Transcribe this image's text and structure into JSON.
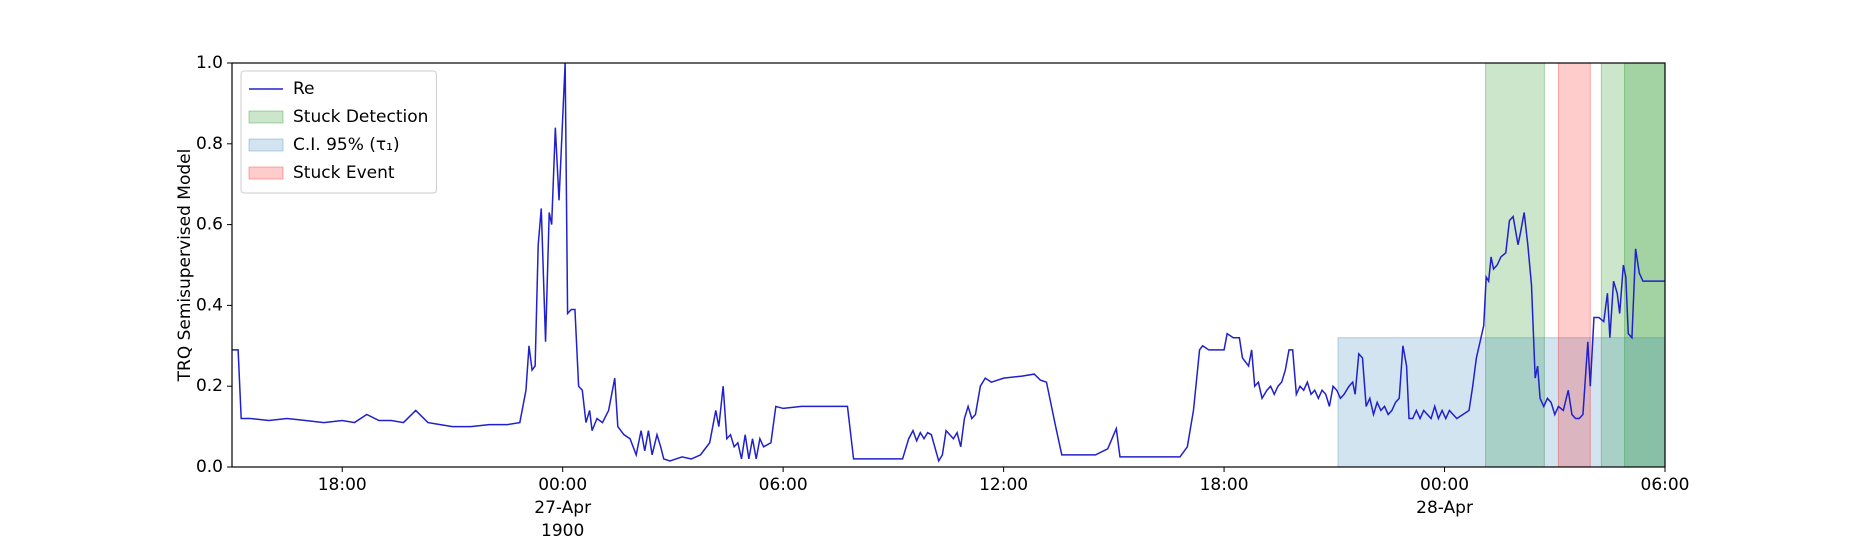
{
  "chart_data": {
    "type": "line",
    "ylabel": "TRQ Semisupervised Model",
    "ylim": [
      0,
      1
    ],
    "yticks": [
      {
        "value": 0,
        "label": "0.0"
      },
      0.2,
      0.4,
      0.6,
      0.8,
      {
        "value": 1,
        "label": "1.0"
      }
    ],
    "xlim": [
      "1900-04-26T15:00",
      "1900-04-28T06:00"
    ],
    "xticks": [
      {
        "value": "1900-04-26T18:00",
        "label": "18:00"
      },
      {
        "value": "1900-04-27T00:00",
        "label": "00:00\n27-Apr\n1900"
      },
      {
        "value": "1900-04-27T06:00",
        "label": "06:00"
      },
      {
        "value": "1900-04-27T12:00",
        "label": "12:00"
      },
      {
        "value": "1900-04-27T18:00",
        "label": "18:00"
      },
      {
        "value": "1900-04-28T00:00",
        "label": "00:00\n28-Apr"
      },
      {
        "value": "1900-04-28T06:00",
        "label": "06:00"
      }
    ],
    "grid": false,
    "legend": "upper left",
    "x": [
      "1900-04-26T15:00",
      "1900-04-26T15:10",
      "1900-04-26T15:15",
      "1900-04-26T15:30",
      "1900-04-26T16:00",
      "1900-04-26T16:30",
      "1900-04-26T17:00",
      "1900-04-26T17:30",
      "1900-04-26T18:00",
      "1900-04-26T18:20",
      "1900-04-26T18:40",
      "1900-04-26T19:00",
      "1900-04-26T19:20",
      "1900-04-26T19:40",
      "1900-04-26T20:00",
      "1900-04-26T20:20",
      "1900-04-26T20:40",
      "1900-04-26T21:00",
      "1900-04-26T21:30",
      "1900-04-26T22:00",
      "1900-04-26T22:30",
      "1900-04-26T22:50",
      "1900-04-26T23:00",
      "1900-04-26T23:05",
      "1900-04-26T23:10",
      "1900-04-26T23:15",
      "1900-04-26T23:20",
      "1900-04-26T23:25",
      "1900-04-26T23:32",
      "1900-04-26T23:38",
      "1900-04-26T23:42",
      "1900-04-26T23:48",
      "1900-04-26T23:54",
      "1900-04-27T00:04",
      "1900-04-27T00:08",
      "1900-04-27T00:14",
      "1900-04-27T00:20",
      "1900-04-27T00:26",
      "1900-04-27T00:32",
      "1900-04-27T00:38",
      "1900-04-27T00:44",
      "1900-04-27T00:48",
      "1900-04-27T00:56",
      "1900-04-27T01:05",
      "1900-04-27T01:15",
      "1900-04-27T01:25",
      "1900-04-27T01:30",
      "1900-04-27T01:40",
      "1900-04-27T01:50",
      "1900-04-27T02:00",
      "1900-04-27T02:08",
      "1900-04-27T02:14",
      "1900-04-27T02:20",
      "1900-04-27T02:26",
      "1900-04-27T02:34",
      "1900-04-27T02:40",
      "1900-04-27T02:45",
      "1900-04-27T02:55",
      "1900-04-27T03:05",
      "1900-04-27T03:15",
      "1900-04-27T03:30",
      "1900-04-27T03:45",
      "1900-04-27T04:00",
      "1900-04-27T04:10",
      "1900-04-27T04:15",
      "1900-04-27T04:22",
      "1900-04-27T04:28",
      "1900-04-27T04:34",
      "1900-04-27T04:40",
      "1900-04-27T04:46",
      "1900-04-27T04:52",
      "1900-04-27T04:58",
      "1900-04-27T05:04",
      "1900-04-27T05:10",
      "1900-04-27T05:16",
      "1900-04-27T05:22",
      "1900-04-27T05:28",
      "1900-04-27T05:40",
      "1900-04-27T05:48",
      "1900-04-27T06:00",
      "1900-04-27T06:30",
      "1900-04-27T07:00",
      "1900-04-27T07:30",
      "1900-04-27T07:45",
      "1900-04-27T07:55",
      "1900-04-27T08:30",
      "1900-04-27T09:00",
      "1900-04-27T09:15",
      "1900-04-27T09:25",
      "1900-04-27T09:32",
      "1900-04-27T09:38",
      "1900-04-27T09:44",
      "1900-04-27T09:50",
      "1900-04-27T09:56",
      "1900-04-27T10:02",
      "1900-04-27T10:14",
      "1900-04-27T10:20",
      "1900-04-27T10:26",
      "1900-04-27T10:32",
      "1900-04-27T10:38",
      "1900-04-27T10:44",
      "1900-04-27T10:50",
      "1900-04-27T10:56",
      "1900-04-27T11:02",
      "1900-04-27T11:08",
      "1900-04-27T11:14",
      "1900-04-27T11:22",
      "1900-04-27T11:30",
      "1900-04-27T11:40",
      "1900-04-27T12:00",
      "1900-04-27T12:30",
      "1900-04-27T12:50",
      "1900-04-27T13:00",
      "1900-04-27T13:10",
      "1900-04-27T13:25",
      "1900-04-27T13:35",
      "1900-04-27T14:00",
      "1900-04-27T14:30",
      "1900-04-27T14:50",
      "1900-04-27T15:04",
      "1900-04-27T15:10",
      "1900-04-27T15:30",
      "1900-04-27T16:00",
      "1900-04-27T16:30",
      "1900-04-27T16:48",
      "1900-04-27T17:00",
      "1900-04-27T17:10",
      "1900-04-27T17:20",
      "1900-04-27T17:25",
      "1900-04-27T17:35",
      "1900-04-27T18:00",
      "1900-04-27T18:05",
      "1900-04-27T18:15",
      "1900-04-27T18:25",
      "1900-04-27T18:30",
      "1900-04-27T18:40",
      "1900-04-27T18:45",
      "1900-04-27T18:50",
      "1900-04-27T18:56",
      "1900-04-27T19:02",
      "1900-04-27T19:10",
      "1900-04-27T19:16",
      "1900-04-27T19:22",
      "1900-04-27T19:28",
      "1900-04-27T19:34",
      "1900-04-27T19:40",
      "1900-04-27T19:46",
      "1900-04-27T19:52",
      "1900-04-27T19:58",
      "1900-04-27T20:04",
      "1900-04-27T20:10",
      "1900-04-27T20:16",
      "1900-04-27T20:22",
      "1900-04-27T20:28",
      "1900-04-27T20:34",
      "1900-04-27T20:40",
      "1900-04-27T20:46",
      "1900-04-27T20:52",
      "1900-04-27T20:58",
      "1900-04-27T21:04",
      "1900-04-27T21:10",
      "1900-04-27T21:16",
      "1900-04-27T21:24",
      "1900-04-27T21:30",
      "1900-04-27T21:34",
      "1900-04-27T21:40",
      "1900-04-27T21:46",
      "1900-04-27T21:52",
      "1900-04-27T21:58",
      "1900-04-27T22:04",
      "1900-04-27T22:10",
      "1900-04-27T22:16",
      "1900-04-27T22:22",
      "1900-04-27T22:28",
      "1900-04-27T22:34",
      "1900-04-27T22:40",
      "1900-04-27T22:46",
      "1900-04-27T22:52",
      "1900-04-27T22:58",
      "1900-04-27T23:02",
      "1900-04-27T23:08",
      "1900-04-27T23:14",
      "1900-04-27T23:20",
      "1900-04-27T23:26",
      "1900-04-27T23:32",
      "1900-04-27T23:38",
      "1900-04-27T23:44",
      "1900-04-27T23:50",
      "1900-04-27T23:56",
      "1900-04-28T00:02",
      "1900-04-28T00:08",
      "1900-04-28T00:14",
      "1900-04-28T00:20",
      "1900-04-28T00:30",
      "1900-04-28T00:40",
      "1900-04-28T00:46",
      "1900-04-28T00:52",
      "1900-04-28T00:58",
      "1900-04-28T01:04",
      "1900-04-28T01:08",
      "1900-04-28T01:12",
      "1900-04-28T01:16",
      "1900-04-28T01:20",
      "1900-04-28T01:26",
      "1900-04-28T01:32",
      "1900-04-28T01:40",
      "1900-04-28T01:46",
      "1900-04-28T01:52",
      "1900-04-28T02:00",
      "1900-04-28T02:04",
      "1900-04-28T02:10",
      "1900-04-28T02:16",
      "1900-04-28T02:22",
      "1900-04-28T02:28",
      "1900-04-28T02:32",
      "1900-04-28T02:36",
      "1900-04-28T02:42",
      "1900-04-28T02:48",
      "1900-04-28T02:54",
      "1900-04-28T03:00",
      "1900-04-28T03:06",
      "1900-04-28T03:14",
      "1900-04-28T03:22",
      "1900-04-28T03:28",
      "1900-04-28T03:34",
      "1900-04-28T03:40",
      "1900-04-28T03:46",
      "1900-04-28T03:54",
      "1900-04-28T03:58",
      "1900-04-28T04:04",
      "1900-04-28T04:12",
      "1900-04-28T04:20",
      "1900-04-28T04:26",
      "1900-04-28T04:30",
      "1900-04-28T04:36",
      "1900-04-28T04:42",
      "1900-04-28T04:46",
      "1900-04-28T04:52",
      "1900-04-28T04:56",
      "1900-04-28T05:00",
      "1900-04-28T05:06",
      "1900-04-28T05:12",
      "1900-04-28T05:18",
      "1900-04-28T05:24",
      "1900-04-28T05:35",
      "1900-04-28T06:00"
    ],
    "series": [
      {
        "name": "Re",
        "color": "#2020cc",
        "values": [
          0.29,
          0.29,
          0.12,
          0.12,
          0.115,
          0.12,
          0.115,
          0.11,
          0.115,
          0.11,
          0.13,
          0.115,
          0.115,
          0.11,
          0.14,
          0.11,
          0.105,
          0.1,
          0.1,
          0.105,
          0.105,
          0.11,
          0.19,
          0.3,
          0.24,
          0.25,
          0.55,
          0.64,
          0.31,
          0.63,
          0.6,
          0.84,
          0.66,
          1.0,
          0.38,
          0.39,
          0.39,
          0.2,
          0.19,
          0.11,
          0.14,
          0.09,
          0.12,
          0.11,
          0.14,
          0.22,
          0.1,
          0.08,
          0.07,
          0.03,
          0.09,
          0.04,
          0.09,
          0.03,
          0.08,
          0.05,
          0.02,
          0.015,
          0.02,
          0.025,
          0.02,
          0.03,
          0.06,
          0.14,
          0.1,
          0.2,
          0.07,
          0.08,
          0.05,
          0.06,
          0.02,
          0.08,
          0.02,
          0.07,
          0.02,
          0.07,
          0.05,
          0.06,
          0.15,
          0.145,
          0.15,
          0.15,
          0.15,
          0.15,
          0.02,
          0.02,
          0.02,
          0.02,
          0.07,
          0.09,
          0.065,
          0.085,
          0.07,
          0.085,
          0.08,
          0.015,
          0.03,
          0.09,
          0.08,
          0.07,
          0.085,
          0.05,
          0.12,
          0.15,
          0.12,
          0.13,
          0.2,
          0.22,
          0.21,
          0.22,
          0.225,
          0.23,
          0.215,
          0.21,
          0.1,
          0.03,
          0.03,
          0.03,
          0.045,
          0.095,
          0.025,
          0.025,
          0.025,
          0.025,
          0.025,
          0.05,
          0.14,
          0.29,
          0.3,
          0.29,
          0.29,
          0.33,
          0.32,
          0.32,
          0.27,
          0.25,
          0.29,
          0.2,
          0.21,
          0.17,
          0.19,
          0.2,
          0.18,
          0.2,
          0.21,
          0.24,
          0.29,
          0.29,
          0.18,
          0.2,
          0.19,
          0.21,
          0.18,
          0.19,
          0.17,
          0.19,
          0.18,
          0.15,
          0.2,
          0.19,
          0.17,
          0.18,
          0.2,
          0.21,
          0.18,
          0.28,
          0.27,
          0.15,
          0.17,
          0.13,
          0.16,
          0.14,
          0.15,
          0.13,
          0.14,
          0.16,
          0.17,
          0.3,
          0.25,
          0.12,
          0.12,
          0.14,
          0.12,
          0.14,
          0.13,
          0.12,
          0.15,
          0.12,
          0.14,
          0.12,
          0.14,
          0.13,
          0.12,
          0.13,
          0.14,
          0.2,
          0.27,
          0.31,
          0.35,
          0.47,
          0.46,
          0.52,
          0.49,
          0.5,
          0.52,
          0.53,
          0.61,
          0.62,
          0.55,
          0.58,
          0.63,
          0.55,
          0.45,
          0.22,
          0.25,
          0.17,
          0.15,
          0.17,
          0.16,
          0.13,
          0.15,
          0.14,
          0.19,
          0.13,
          0.12,
          0.12,
          0.13,
          0.31,
          0.2,
          0.37,
          0.37,
          0.36,
          0.43,
          0.32,
          0.46,
          0.43,
          0.38,
          0.5,
          0.47,
          0.33,
          0.32,
          0.54,
          0.48,
          0.46,
          0.46,
          0.46
        ]
      }
    ],
    "bands": [
      {
        "name": "Stuck Detection",
        "color": "green",
        "alpha": 0.2,
        "ranges": [
          [
            "1900-04-28T01:07",
            "1900-04-28T02:43"
          ],
          [
            "1900-04-28T04:16",
            "1900-04-28T06:00"
          ],
          [
            "1900-04-28T04:54",
            "1900-04-28T06:00"
          ]
        ]
      },
      {
        "name": "C.I. 95% (τ₁)",
        "color": "#1f77b4",
        "alpha": 0.2,
        "ranges": [
          [
            "1900-04-27T21:06",
            "1900-04-28T06:00"
          ]
        ],
        "y": [
          0,
          0.32
        ]
      },
      {
        "name": "Stuck Event",
        "color": "red",
        "alpha": 0.2,
        "ranges": [
          [
            "1900-04-28T03:06",
            "1900-04-28T03:58"
          ]
        ]
      }
    ]
  }
}
